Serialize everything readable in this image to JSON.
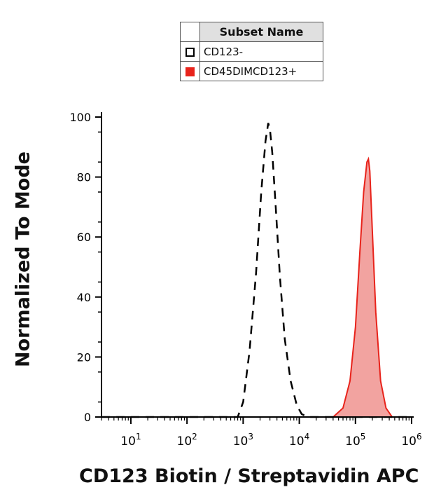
{
  "legend": {
    "header": "Subset Name",
    "items": [
      {
        "name": "CD123-",
        "style": "dashed-outline",
        "color": "#000000"
      },
      {
        "name": "CD45DIMCD123+",
        "style": "filled",
        "color": "#e8231b"
      }
    ]
  },
  "chart_data": {
    "type": "area",
    "title": "",
    "xlabel": "CD123 Biotin / Streptavidin APC",
    "ylabel": "Normalized To Mode",
    "x_scale": "log",
    "xlim": [
      3,
      1000000
    ],
    "ylim": [
      0,
      100
    ],
    "x_ticks": [
      {
        "value": 10,
        "base": "10",
        "exp": "1"
      },
      {
        "value": 100,
        "base": "10",
        "exp": "2"
      },
      {
        "value": 1000,
        "base": "10",
        "exp": "3"
      },
      {
        "value": 10000,
        "base": "10",
        "exp": "4"
      },
      {
        "value": 100000,
        "base": "10",
        "exp": "5"
      },
      {
        "value": 1000000,
        "base": "10",
        "exp": "6"
      }
    ],
    "y_ticks": [
      "0",
      "20",
      "40",
      "60",
      "80",
      "100"
    ],
    "series": [
      {
        "name": "CD123-",
        "style": "dashed",
        "color": "#000000",
        "x": [
          3,
          800,
          1000,
          1300,
          1700,
          2100,
          2500,
          2800,
          3000,
          3300,
          3800,
          4500,
          5500,
          7000,
          9000,
          11000,
          14000,
          1000000
        ],
        "y": [
          0,
          0,
          5,
          22,
          48,
          75,
          92,
          98,
          96,
          88,
          70,
          47,
          26,
          12,
          4,
          1,
          0,
          0
        ]
      },
      {
        "name": "CD45DIMCD123+",
        "style": "filled",
        "color": "#e8231b",
        "fill": "#f2a3a0",
        "x": [
          3,
          40000,
          60000,
          80000,
          100000,
          120000,
          140000,
          160000,
          170000,
          180000,
          200000,
          230000,
          280000,
          350000,
          450000,
          1000000
        ],
        "y": [
          0,
          0,
          3,
          12,
          30,
          55,
          75,
          85,
          86,
          82,
          62,
          35,
          12,
          3,
          0,
          0
        ]
      }
    ]
  }
}
